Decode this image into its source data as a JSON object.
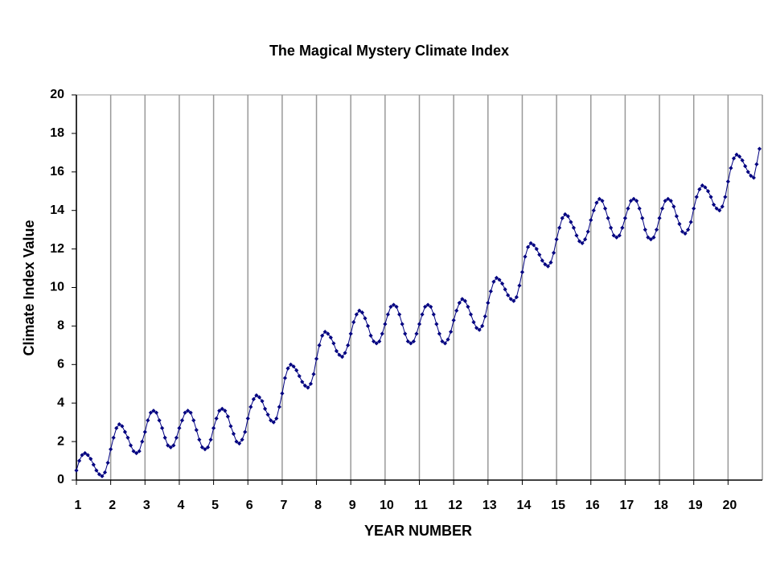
{
  "chart_data": {
    "type": "line",
    "title": "The Magical Mystery Climate Index",
    "xlabel": "YEAR NUMBER",
    "ylabel": "Climate Index Value",
    "xlim": [
      1,
      21
    ],
    "ylim": [
      0,
      20
    ],
    "xticks": [
      1,
      2,
      3,
      4,
      5,
      6,
      7,
      8,
      9,
      10,
      11,
      12,
      13,
      14,
      15,
      16,
      17,
      18,
      19,
      20
    ],
    "yticks": [
      0,
      2,
      4,
      6,
      8,
      10,
      12,
      14,
      16,
      18,
      20
    ],
    "grid": "x",
    "x": [
      1,
      1.083,
      1.167,
      1.25,
      1.333,
      1.417,
      1.5,
      1.583,
      1.667,
      1.75,
      1.833,
      1.917,
      2,
      2.083,
      2.167,
      2.25,
      2.333,
      2.417,
      2.5,
      2.583,
      2.667,
      2.75,
      2.833,
      2.917,
      3,
      3.083,
      3.167,
      3.25,
      3.333,
      3.417,
      3.5,
      3.583,
      3.667,
      3.75,
      3.833,
      3.917,
      4,
      4.083,
      4.167,
      4.25,
      4.333,
      4.417,
      4.5,
      4.583,
      4.667,
      4.75,
      4.833,
      4.917,
      5,
      5.083,
      5.167,
      5.25,
      5.333,
      5.417,
      5.5,
      5.583,
      5.667,
      5.75,
      5.833,
      5.917,
      6,
      6.083,
      6.167,
      6.25,
      6.333,
      6.417,
      6.5,
      6.583,
      6.667,
      6.75,
      6.833,
      6.917,
      7,
      7.083,
      7.167,
      7.25,
      7.333,
      7.417,
      7.5,
      7.583,
      7.667,
      7.75,
      7.833,
      7.917,
      8,
      8.083,
      8.167,
      8.25,
      8.333,
      8.417,
      8.5,
      8.583,
      8.667,
      8.75,
      8.833,
      8.917,
      9,
      9.083,
      9.167,
      9.25,
      9.333,
      9.417,
      9.5,
      9.583,
      9.667,
      9.75,
      9.833,
      9.917,
      10,
      10.083,
      10.167,
      10.25,
      10.333,
      10.417,
      10.5,
      10.583,
      10.667,
      10.75,
      10.833,
      10.917,
      11,
      11.083,
      11.167,
      11.25,
      11.333,
      11.417,
      11.5,
      11.583,
      11.667,
      11.75,
      11.833,
      11.917,
      12,
      12.083,
      12.167,
      12.25,
      12.333,
      12.417,
      12.5,
      12.583,
      12.667,
      12.75,
      12.833,
      12.917,
      13,
      13.083,
      13.167,
      13.25,
      13.333,
      13.417,
      13.5,
      13.583,
      13.667,
      13.75,
      13.833,
      13.917,
      14,
      14.083,
      14.167,
      14.25,
      14.333,
      14.417,
      14.5,
      14.583,
      14.667,
      14.75,
      14.833,
      14.917,
      15,
      15.083,
      15.167,
      15.25,
      15.333,
      15.417,
      15.5,
      15.583,
      15.667,
      15.75,
      15.833,
      15.917,
      16,
      16.083,
      16.167,
      16.25,
      16.333,
      16.417,
      16.5,
      16.583,
      16.667,
      16.75,
      16.833,
      16.917,
      17,
      17.083,
      17.167,
      17.25,
      17.333,
      17.417,
      17.5,
      17.583,
      17.667,
      17.75,
      17.833,
      17.917,
      18,
      18.083,
      18.167,
      18.25,
      18.333,
      18.417,
      18.5,
      18.583,
      18.667,
      18.75,
      18.833,
      18.917,
      19,
      19.083,
      19.167,
      19.25,
      19.333,
      19.417,
      19.5,
      19.583,
      19.667,
      19.75,
      19.833,
      19.917,
      20,
      20.083,
      20.167,
      20.25,
      20.333,
      20.417,
      20.5,
      20.583,
      20.667,
      20.75,
      20.833,
      20.917
    ],
    "series": [
      {
        "color": "#000080",
        "values": [
          0.5,
          1.0,
          1.3,
          1.4,
          1.3,
          1.1,
          0.8,
          0.5,
          0.3,
          0.2,
          0.4,
          0.9,
          1.6,
          2.2,
          2.7,
          2.9,
          2.8,
          2.5,
          2.2,
          1.8,
          1.5,
          1.4,
          1.5,
          2.0,
          2.5,
          3.1,
          3.5,
          3.6,
          3.5,
          3.1,
          2.7,
          2.2,
          1.8,
          1.7,
          1.8,
          2.2,
          2.7,
          3.1,
          3.5,
          3.6,
          3.5,
          3.1,
          2.6,
          2.1,
          1.7,
          1.6,
          1.7,
          2.1,
          2.7,
          3.2,
          3.6,
          3.7,
          3.6,
          3.3,
          2.8,
          2.4,
          2.0,
          1.9,
          2.1,
          2.5,
          3.2,
          3.8,
          4.2,
          4.4,
          4.3,
          4.1,
          3.7,
          3.4,
          3.1,
          3.0,
          3.2,
          3.8,
          4.5,
          5.3,
          5.8,
          6.0,
          5.9,
          5.7,
          5.4,
          5.1,
          4.9,
          4.8,
          5.0,
          5.5,
          6.3,
          7.0,
          7.5,
          7.7,
          7.6,
          7.4,
          7.1,
          6.7,
          6.5,
          6.4,
          6.6,
          7.0,
          7.6,
          8.2,
          8.6,
          8.8,
          8.7,
          8.4,
          8.0,
          7.5,
          7.2,
          7.1,
          7.2,
          7.6,
          8.1,
          8.6,
          9.0,
          9.1,
          9.0,
          8.6,
          8.1,
          7.6,
          7.2,
          7.1,
          7.2,
          7.6,
          8.1,
          8.6,
          9.0,
          9.1,
          9.0,
          8.6,
          8.1,
          7.6,
          7.2,
          7.1,
          7.3,
          7.7,
          8.3,
          8.8,
          9.2,
          9.4,
          9.3,
          9.0,
          8.6,
          8.2,
          7.9,
          7.8,
          8.0,
          8.5,
          9.2,
          9.8,
          10.3,
          10.5,
          10.4,
          10.2,
          9.9,
          9.6,
          9.4,
          9.3,
          9.5,
          10.1,
          10.8,
          11.6,
          12.1,
          12.3,
          12.2,
          12.0,
          11.7,
          11.4,
          11.2,
          11.1,
          11.3,
          11.8,
          12.5,
          13.1,
          13.6,
          13.8,
          13.7,
          13.4,
          13.1,
          12.7,
          12.4,
          12.3,
          12.5,
          12.9,
          13.5,
          14.0,
          14.4,
          14.6,
          14.5,
          14.1,
          13.6,
          13.1,
          12.7,
          12.6,
          12.7,
          13.1,
          13.6,
          14.1,
          14.5,
          14.6,
          14.5,
          14.1,
          13.6,
          13.0,
          12.6,
          12.5,
          12.6,
          13.0,
          13.6,
          14.1,
          14.5,
          14.6,
          14.5,
          14.2,
          13.7,
          13.3,
          12.9,
          12.8,
          13.0,
          13.4,
          14.1,
          14.7,
          15.1,
          15.3,
          15.2,
          15.0,
          14.7,
          14.3,
          14.1,
          14.0,
          14.2,
          14.7,
          15.5,
          16.2,
          16.7,
          16.9,
          16.8,
          16.6,
          16.3,
          16.0,
          15.8,
          15.7,
          16.4,
          17.2
        ]
      }
    ]
  }
}
